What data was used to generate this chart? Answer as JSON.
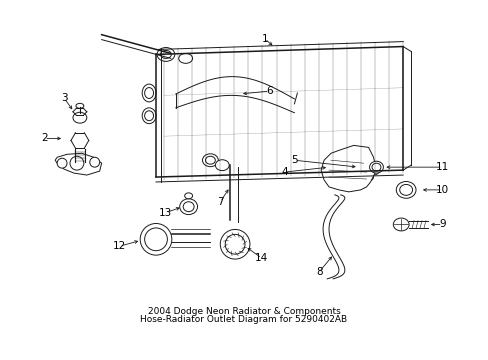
{
  "title": "2004 Dodge Neon Radiator & Components",
  "subtitle": "Hose-Radiator Outlet Diagram for 5290402AB",
  "background_color": "#ffffff",
  "line_color": "#1a1a1a",
  "text_color": "#000000",
  "fig_width": 4.89,
  "fig_height": 3.6,
  "dpi": 100,
  "label_fontsize": 7.5,
  "title_fontsize": 6.5
}
